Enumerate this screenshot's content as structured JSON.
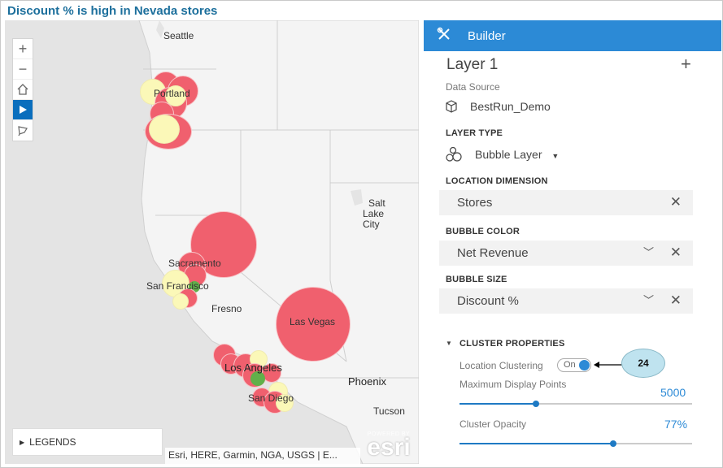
{
  "title": "Discount % is high in Nevada stores",
  "map": {
    "cities": [
      "Seattle",
      "Portland",
      "Salt",
      "Lake",
      "City",
      "Sacramento",
      "San Francisco",
      "Fresno",
      "Las Vegas",
      "Los Angeles",
      "Phoenix",
      "San Diego",
      "Tucson"
    ],
    "zoom_in": "+",
    "zoom_out": "−",
    "legends_label": "LEGENDS",
    "attribution": "Esri, HERE, Garmin, NGA, USGS | E...",
    "esri_powered": "POWERED BY",
    "esri_logo": "esri",
    "colors": {
      "high": "#f0606e",
      "mid": "#fbf8b8",
      "low": "#61b04a",
      "water": "#e4e4e4"
    }
  },
  "builder": {
    "header": "Builder",
    "layer_name": "Layer 1",
    "add": "+",
    "data_source_label": "Data Source",
    "data_source_value": "BestRun_Demo",
    "layer_type_label": "LAYER TYPE",
    "layer_type_value": "Bubble Layer",
    "location_dimension_label": "LOCATION DIMENSION",
    "location_dimension_value": "Stores",
    "bubble_color_label": "BUBBLE COLOR",
    "bubble_color_value": "Net Revenue",
    "bubble_size_label": "BUBBLE SIZE",
    "bubble_size_value": "Discount %",
    "cluster_label": "CLUSTER PROPERTIES",
    "location_clustering_label": "Location Clustering",
    "toggle_state": "On",
    "max_points_label": "Maximum Display Points",
    "max_points_value": "5000",
    "max_points_fraction": 0.33,
    "cluster_opacity_label": "Cluster Opacity",
    "cluster_opacity_value": "77%",
    "cluster_opacity_fraction": 0.66,
    "accent": "#2c8ad6"
  },
  "callout": {
    "text": "24"
  }
}
